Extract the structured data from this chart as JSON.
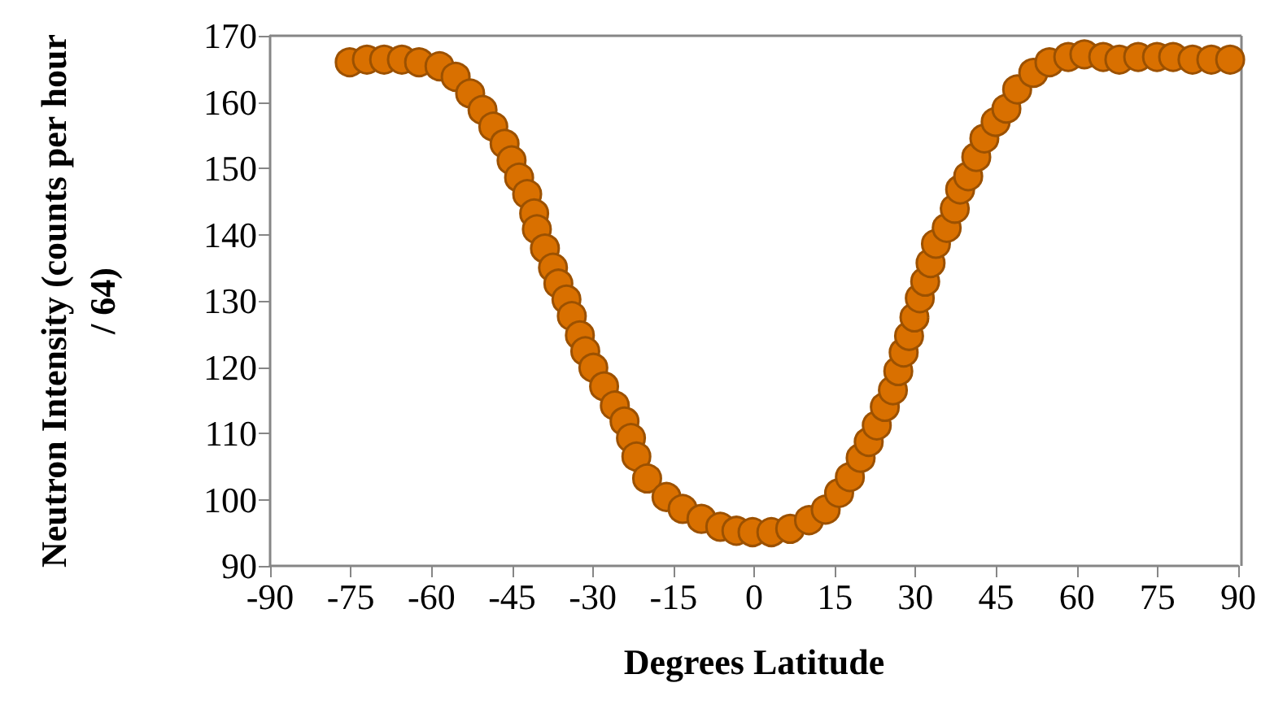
{
  "chart_data": {
    "type": "scatter",
    "xlabel": "Degrees Latitude",
    "ylabel": "Neutron Intensity (counts per hour/ 64)",
    "x": [
      -75.2,
      -72.0,
      -68.8,
      -65.5,
      -62.3,
      -58.5,
      -55.5,
      -52.8,
      -50.5,
      -48.5,
      -46.4,
      -45.1,
      -43.7,
      -42.2,
      -40.9,
      -40.4,
      -38.9,
      -37.4,
      -36.4,
      -34.9,
      -33.9,
      -32.4,
      -31.4,
      -29.9,
      -27.9,
      -25.9,
      -24.1,
      -22.9,
      -21.9,
      -19.9,
      -16.3,
      -13.3,
      -9.8,
      -6.3,
      -3.3,
      -0.3,
      3.2,
      6.7,
      10.2,
      13.3,
      15.8,
      17.8,
      19.8,
      21.3,
      22.8,
      24.3,
      25.8,
      26.8,
      27.8,
      28.8,
      29.8,
      30.8,
      31.8,
      32.8,
      33.8,
      35.8,
      37.3,
      38.3,
      39.8,
      41.3,
      42.8,
      44.9,
      46.9,
      48.9,
      51.9,
      54.9,
      58.4,
      61.4,
      64.9,
      67.9,
      71.4,
      74.9,
      77.9,
      81.5,
      85.0,
      88.5
    ],
    "series": [
      {
        "color": "#d97000",
        "values": [
          166.0,
          166.4,
          166.4,
          166.4,
          166.0,
          165.4,
          163.8,
          161.3,
          158.8,
          156.3,
          153.7,
          151.2,
          148.6,
          146.1,
          143.2,
          140.8,
          137.9,
          135.0,
          132.6,
          130.2,
          127.7,
          124.8,
          122.4,
          119.9,
          117.1,
          114.2,
          111.8,
          109.3,
          106.5,
          103.2,
          100.4,
          98.6,
          97.1,
          95.9,
          95.3,
          95.1,
          95.1,
          95.6,
          96.9,
          98.5,
          101.0,
          103.4,
          106.3,
          108.7,
          111.2,
          114.0,
          116.5,
          119.4,
          122.2,
          124.7,
          127.5,
          130.4,
          132.9,
          135.7,
          138.6,
          141.0,
          143.9,
          146.8,
          148.8,
          151.7,
          154.5,
          157.0,
          159.0,
          161.9,
          164.4,
          166.0,
          166.8,
          167.2,
          166.8,
          166.4,
          166.8,
          166.8,
          166.8,
          166.4,
          166.4,
          166.4
        ]
      }
    ],
    "xlim": [
      -90,
      90
    ],
    "xticks": [
      -90,
      -75,
      -60,
      -45,
      -30,
      -15,
      0,
      15,
      30,
      45,
      60,
      75,
      90
    ],
    "ylim": [
      90,
      170
    ],
    "yticks": [
      90,
      100,
      110,
      120,
      130,
      140,
      150,
      160,
      170
    ],
    "marker": "circle",
    "grid": false
  }
}
